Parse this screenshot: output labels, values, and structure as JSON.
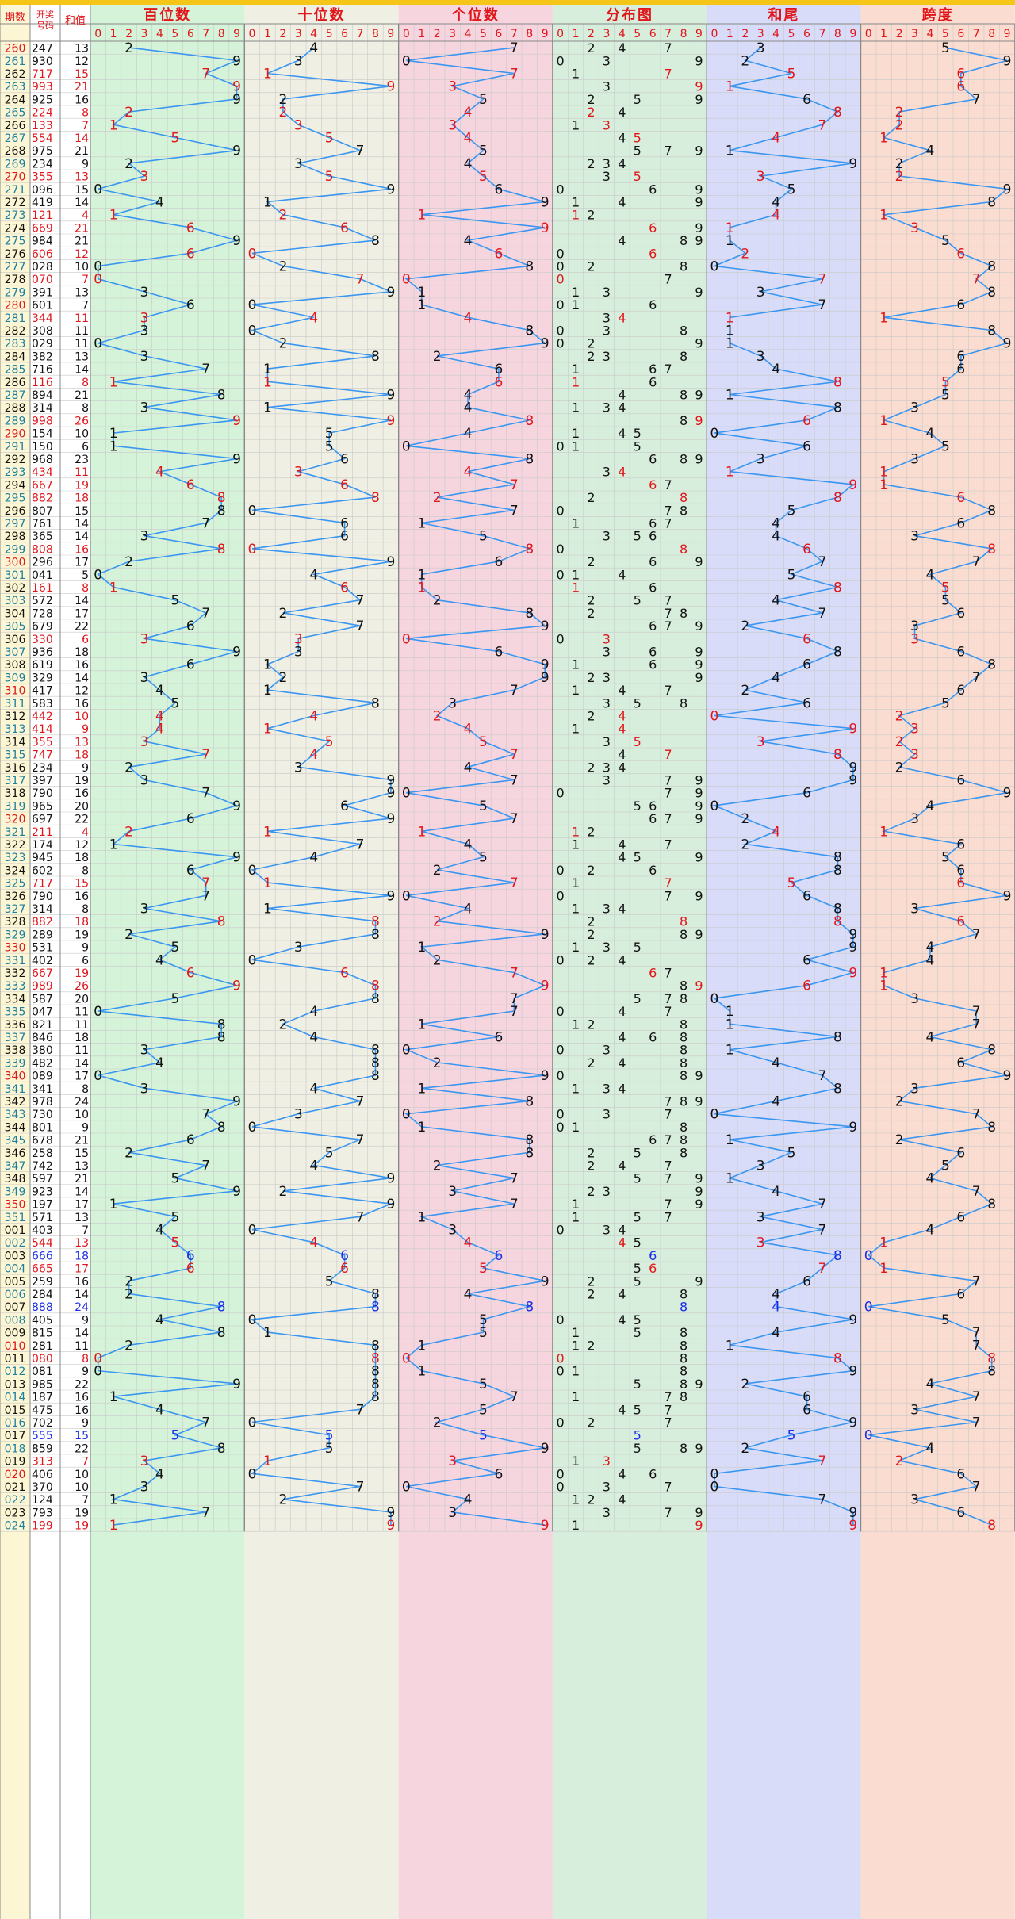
{
  "chart_data": {
    "type": "table",
    "headers": {
      "period": "期数",
      "draw": "开奖号码",
      "sum": "和值"
    },
    "sections": [
      "百位数",
      "十位数",
      "个位数",
      "分布图",
      "和尾",
      "跨度"
    ],
    "digits": [
      "0",
      "1",
      "2",
      "3",
      "4",
      "5",
      "6",
      "7",
      "8",
      "9"
    ],
    "rows": [
      [
        "260",
        "247",
        "13"
      ],
      [
        "261",
        "930",
        "12"
      ],
      [
        "262",
        "717",
        "15"
      ],
      [
        "263",
        "993",
        "21"
      ],
      [
        "264",
        "925",
        "16"
      ],
      [
        "265",
        "224",
        "8"
      ],
      [
        "266",
        "133",
        "7"
      ],
      [
        "267",
        "554",
        "14"
      ],
      [
        "268",
        "975",
        "21"
      ],
      [
        "269",
        "234",
        "9"
      ],
      [
        "270",
        "355",
        "13"
      ],
      [
        "271",
        "096",
        "15"
      ],
      [
        "272",
        "419",
        "14"
      ],
      [
        "273",
        "121",
        "4"
      ],
      [
        "274",
        "669",
        "21"
      ],
      [
        "275",
        "984",
        "21"
      ],
      [
        "276",
        "606",
        "12"
      ],
      [
        "277",
        "028",
        "10"
      ],
      [
        "278",
        "070",
        "7"
      ],
      [
        "279",
        "391",
        "13"
      ],
      [
        "280",
        "601",
        "7"
      ],
      [
        "281",
        "344",
        "11"
      ],
      [
        "282",
        "308",
        "11"
      ],
      [
        "283",
        "029",
        "11"
      ],
      [
        "284",
        "382",
        "13"
      ],
      [
        "285",
        "716",
        "14"
      ],
      [
        "286",
        "116",
        "8"
      ],
      [
        "287",
        "894",
        "21"
      ],
      [
        "288",
        "314",
        "8"
      ],
      [
        "289",
        "998",
        "26"
      ],
      [
        "290",
        "154",
        "10"
      ],
      [
        "291",
        "150",
        "6"
      ],
      [
        "292",
        "968",
        "23"
      ],
      [
        "293",
        "434",
        "11"
      ],
      [
        "294",
        "667",
        "19"
      ],
      [
        "295",
        "882",
        "18"
      ],
      [
        "296",
        "807",
        "15"
      ],
      [
        "297",
        "761",
        "14"
      ],
      [
        "298",
        "365",
        "14"
      ],
      [
        "299",
        "808",
        "16"
      ],
      [
        "300",
        "296",
        "17"
      ],
      [
        "301",
        "041",
        "5"
      ],
      [
        "302",
        "161",
        "8"
      ],
      [
        "303",
        "572",
        "14"
      ],
      [
        "304",
        "728",
        "17"
      ],
      [
        "305",
        "679",
        "22"
      ],
      [
        "306",
        "330",
        "6"
      ],
      [
        "307",
        "936",
        "18"
      ],
      [
        "308",
        "619",
        "16"
      ],
      [
        "309",
        "329",
        "14"
      ],
      [
        "310",
        "417",
        "12"
      ],
      [
        "311",
        "583",
        "16"
      ],
      [
        "312",
        "442",
        "10"
      ],
      [
        "313",
        "414",
        "9"
      ],
      [
        "314",
        "355",
        "13"
      ],
      [
        "315",
        "747",
        "18"
      ],
      [
        "316",
        "234",
        "9"
      ],
      [
        "317",
        "397",
        "19"
      ],
      [
        "318",
        "790",
        "16"
      ],
      [
        "319",
        "965",
        "20"
      ],
      [
        "320",
        "697",
        "22"
      ],
      [
        "321",
        "211",
        "4"
      ],
      [
        "322",
        "174",
        "12"
      ],
      [
        "323",
        "945",
        "18"
      ],
      [
        "324",
        "602",
        "8"
      ],
      [
        "325",
        "717",
        "15"
      ],
      [
        "326",
        "790",
        "16"
      ],
      [
        "327",
        "314",
        "8"
      ],
      [
        "328",
        "882",
        "18"
      ],
      [
        "329",
        "289",
        "19"
      ],
      [
        "330",
        "531",
        "9"
      ],
      [
        "331",
        "402",
        "6"
      ],
      [
        "332",
        "667",
        "19"
      ],
      [
        "333",
        "989",
        "26"
      ],
      [
        "334",
        "587",
        "20"
      ],
      [
        "335",
        "047",
        "11"
      ],
      [
        "336",
        "821",
        "11"
      ],
      [
        "337",
        "846",
        "18"
      ],
      [
        "338",
        "380",
        "11"
      ],
      [
        "339",
        "482",
        "14"
      ],
      [
        "340",
        "089",
        "17"
      ],
      [
        "341",
        "341",
        "8"
      ],
      [
        "342",
        "978",
        "24"
      ],
      [
        "343",
        "730",
        "10"
      ],
      [
        "344",
        "801",
        "9"
      ],
      [
        "345",
        "678",
        "21"
      ],
      [
        "346",
        "258",
        "15"
      ],
      [
        "347",
        "742",
        "13"
      ],
      [
        "348",
        "597",
        "21"
      ],
      [
        "349",
        "923",
        "14"
      ],
      [
        "350",
        "197",
        "17"
      ],
      [
        "351",
        "571",
        "13"
      ],
      [
        "001",
        "403",
        "7"
      ],
      [
        "002",
        "544",
        "13"
      ],
      [
        "003",
        "666",
        "18"
      ],
      [
        "004",
        "665",
        "17"
      ],
      [
        "005",
        "259",
        "16"
      ],
      [
        "006",
        "284",
        "14"
      ],
      [
        "007",
        "888",
        "24"
      ],
      [
        "008",
        "405",
        "9"
      ],
      [
        "009",
        "815",
        "14"
      ],
      [
        "010",
        "281",
        "11"
      ],
      [
        "011",
        "080",
        "8"
      ],
      [
        "012",
        "081",
        "9"
      ],
      [
        "013",
        "985",
        "22"
      ],
      [
        "014",
        "187",
        "16"
      ],
      [
        "015",
        "475",
        "16"
      ],
      [
        "016",
        "702",
        "9"
      ],
      [
        "017",
        "555",
        "15"
      ],
      [
        "018",
        "859",
        "22"
      ],
      [
        "019",
        "313",
        "7"
      ],
      [
        "020",
        "406",
        "10"
      ],
      [
        "021",
        "370",
        "10"
      ],
      [
        "022",
        "124",
        "7"
      ],
      [
        "023",
        "793",
        "19"
      ],
      [
        "024",
        "199",
        "19"
      ]
    ]
  },
  "colors": {
    "top_bar": "#f5c518",
    "header_text_red": "#e0161b",
    "line_blue": "#3a96f0",
    "num_black": "#111111",
    "num_red": "#e0161b",
    "num_blue": "#1c2fe6",
    "period_black": "#111111",
    "period_teal": "#1a7fa0",
    "period_red": "#e0161b",
    "sections_bg": [
      "#d5f3d8",
      "#efefe3",
      "#f6d5df",
      "#d8eedd",
      "#d8dcf8",
      "#fbdcd0"
    ]
  }
}
